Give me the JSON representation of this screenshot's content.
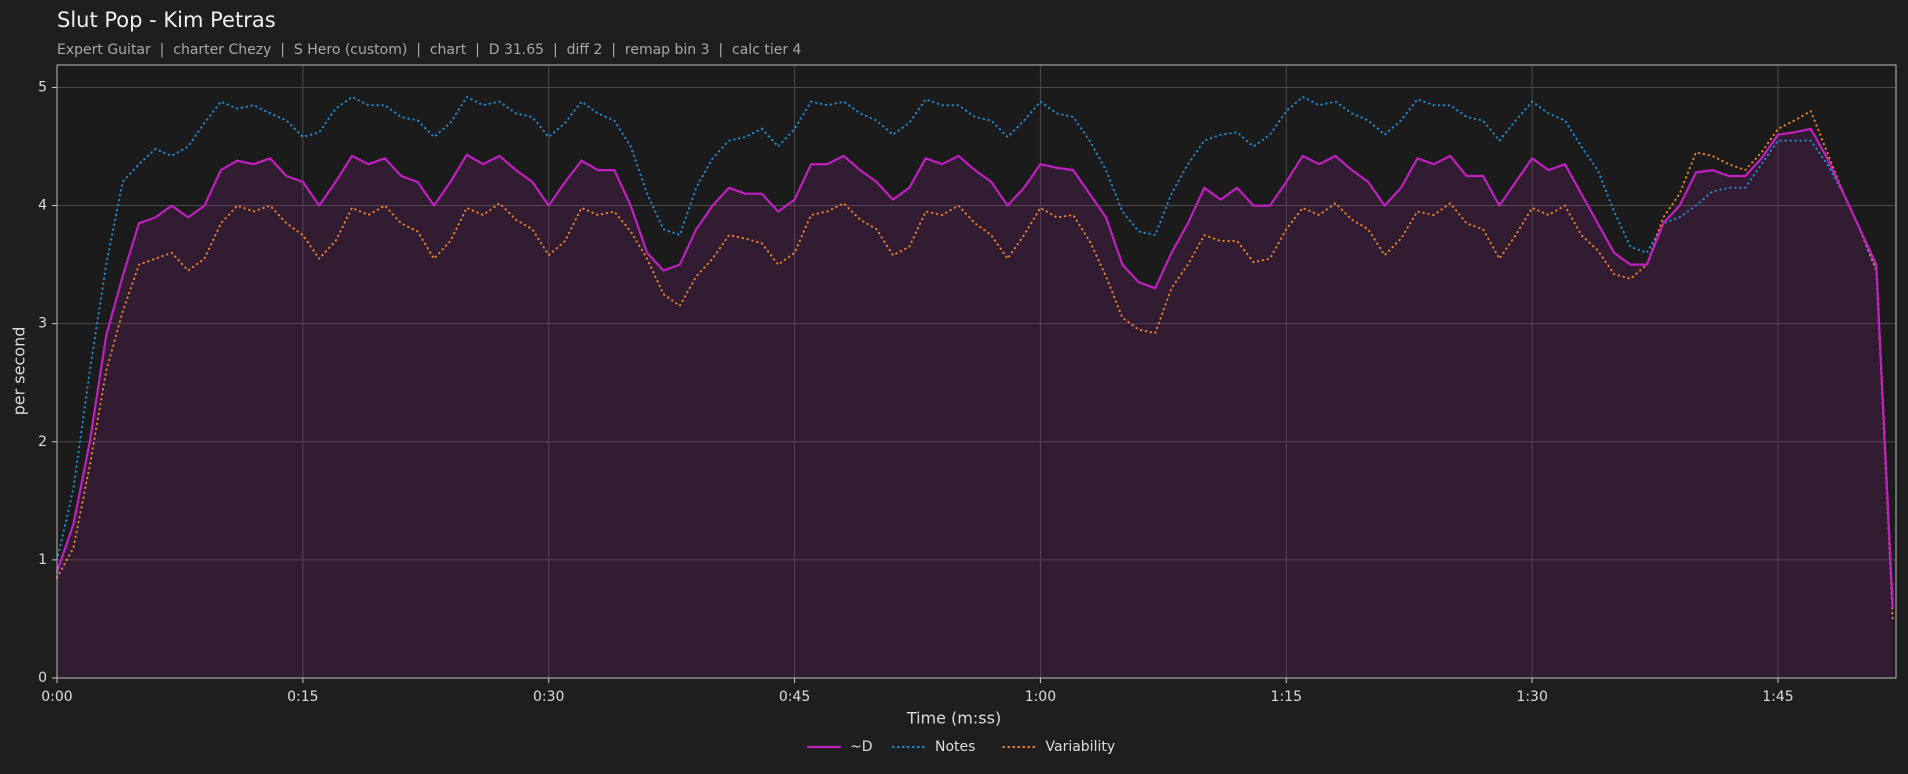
{
  "chart_data": {
    "type": "line",
    "title": "Slut Pop - Kim Petras",
    "subtitle": "Expert Guitar  |  charter Chezy  |  S Hero (custom)  |  chart  |  D 31.65  |  diff 2  |  remap bin 3  |  calc tier 4",
    "x_label": "Time (m:ss)",
    "y_label": "per second",
    "x": [
      0,
      1,
      2,
      3,
      4,
      5,
      6,
      7,
      8,
      9,
      10,
      11,
      12,
      13,
      14,
      15,
      16,
      17,
      18,
      19,
      20,
      21,
      22,
      23,
      24,
      25,
      26,
      27,
      28,
      29,
      30,
      31,
      32,
      33,
      34,
      35,
      36,
      37,
      38,
      39,
      40,
      41,
      42,
      43,
      44,
      45,
      46,
      47,
      48,
      49,
      50,
      51,
      52,
      53,
      54,
      55,
      56,
      57,
      58,
      59,
      60,
      61,
      62,
      63,
      64,
      65,
      66,
      67,
      68,
      69,
      70,
      71,
      72,
      73,
      74,
      75,
      76,
      77,
      78,
      79,
      80,
      81,
      82,
      83,
      84,
      85,
      86,
      87,
      88,
      89,
      90,
      91,
      92,
      93,
      94,
      95,
      96,
      97,
      98,
      99,
      100,
      101,
      102,
      103,
      104,
      105,
      106,
      107,
      108,
      109,
      110,
      111,
      112
    ],
    "series": [
      {
        "name": "~D",
        "color": "#c020c0",
        "style": "solid",
        "fill": true,
        "values": [
          0.9,
          1.3,
          2.0,
          2.9,
          3.4,
          3.85,
          3.9,
          4.0,
          3.9,
          4.0,
          4.3,
          4.38,
          4.35,
          4.4,
          4.25,
          4.2,
          4.0,
          4.2,
          4.42,
          4.35,
          4.4,
          4.25,
          4.2,
          4.0,
          4.2,
          4.43,
          4.35,
          4.42,
          4.3,
          4.2,
          4.0,
          4.2,
          4.38,
          4.3,
          4.3,
          4.0,
          3.6,
          3.45,
          3.5,
          3.8,
          4.0,
          4.15,
          4.1,
          4.1,
          3.95,
          4.05,
          4.35,
          4.35,
          4.42,
          4.3,
          4.2,
          4.05,
          4.15,
          4.4,
          4.35,
          4.42,
          4.3,
          4.2,
          4.0,
          4.15,
          4.35,
          4.32,
          4.3,
          4.1,
          3.9,
          3.5,
          3.35,
          3.3,
          3.6,
          3.85,
          4.15,
          4.05,
          4.15,
          4.0,
          4.0,
          4.2,
          4.42,
          4.35,
          4.42,
          4.3,
          4.2,
          4.0,
          4.15,
          4.4,
          4.35,
          4.42,
          4.25,
          4.25,
          4.0,
          4.2,
          4.4,
          4.3,
          4.35,
          4.1,
          3.85,
          3.6,
          3.5,
          3.5,
          3.85,
          4.0,
          4.28,
          4.3,
          4.25,
          4.25,
          4.4,
          4.6,
          4.62,
          4.65,
          4.4,
          4.1,
          3.8,
          3.5,
          0.6
        ]
      },
      {
        "name": "Notes",
        "color": "#1f8ad0",
        "style": "dotted",
        "values": [
          1.0,
          1.6,
          2.6,
          3.5,
          4.2,
          4.35,
          4.48,
          4.42,
          4.5,
          4.7,
          4.88,
          4.82,
          4.85,
          4.78,
          4.72,
          4.58,
          4.62,
          4.82,
          4.92,
          4.85,
          4.85,
          4.75,
          4.72,
          4.58,
          4.7,
          4.92,
          4.85,
          4.88,
          4.78,
          4.75,
          4.58,
          4.7,
          4.88,
          4.78,
          4.72,
          4.5,
          4.1,
          3.8,
          3.75,
          4.15,
          4.4,
          4.55,
          4.58,
          4.65,
          4.5,
          4.65,
          4.88,
          4.85,
          4.88,
          4.78,
          4.72,
          4.6,
          4.7,
          4.9,
          4.85,
          4.85,
          4.75,
          4.72,
          4.58,
          4.72,
          4.88,
          4.78,
          4.75,
          4.55,
          4.3,
          3.95,
          3.78,
          3.75,
          4.1,
          4.35,
          4.55,
          4.6,
          4.62,
          4.5,
          4.6,
          4.8,
          4.92,
          4.85,
          4.88,
          4.78,
          4.72,
          4.6,
          4.72,
          4.9,
          4.85,
          4.85,
          4.75,
          4.72,
          4.55,
          4.72,
          4.88,
          4.78,
          4.72,
          4.5,
          4.3,
          3.95,
          3.65,
          3.6,
          3.85,
          3.9,
          4.0,
          4.12,
          4.15,
          4.15,
          4.35,
          4.55,
          4.55,
          4.55,
          4.35,
          4.1,
          3.8,
          3.45,
          0.6
        ]
      },
      {
        "name": "Variability",
        "color": "#e8802a",
        "style": "dotted",
        "values": [
          0.85,
          1.1,
          1.8,
          2.6,
          3.1,
          3.5,
          3.55,
          3.6,
          3.45,
          3.55,
          3.85,
          4.0,
          3.95,
          4.0,
          3.85,
          3.75,
          3.55,
          3.7,
          3.98,
          3.92,
          4.0,
          3.85,
          3.78,
          3.55,
          3.7,
          3.98,
          3.92,
          4.02,
          3.88,
          3.8,
          3.58,
          3.7,
          3.98,
          3.92,
          3.95,
          3.78,
          3.55,
          3.25,
          3.15,
          3.4,
          3.55,
          3.75,
          3.72,
          3.68,
          3.5,
          3.6,
          3.92,
          3.95,
          4.02,
          3.88,
          3.8,
          3.58,
          3.65,
          3.95,
          3.92,
          4.0,
          3.85,
          3.75,
          3.55,
          3.75,
          3.98,
          3.9,
          3.92,
          3.7,
          3.4,
          3.05,
          2.95,
          2.92,
          3.3,
          3.5,
          3.75,
          3.7,
          3.7,
          3.52,
          3.55,
          3.8,
          3.98,
          3.92,
          4.02,
          3.88,
          3.8,
          3.58,
          3.72,
          3.95,
          3.92,
          4.02,
          3.85,
          3.8,
          3.55,
          3.75,
          3.98,
          3.92,
          4.0,
          3.75,
          3.62,
          3.42,
          3.38,
          3.5,
          3.9,
          4.1,
          4.45,
          4.42,
          4.35,
          4.3,
          4.45,
          4.65,
          4.72,
          4.8,
          4.45,
          4.1,
          3.8,
          3.45,
          0.5
        ]
      }
    ],
    "xlim": [
      0,
      112.2
    ],
    "xticks": [
      {
        "value": 0,
        "label": "0:00"
      },
      {
        "value": 15,
        "label": "0:15"
      },
      {
        "value": 30,
        "label": "0:30"
      },
      {
        "value": 45,
        "label": "0:45"
      },
      {
        "value": 60,
        "label": "1:00"
      },
      {
        "value": 75,
        "label": "1:15"
      },
      {
        "value": 90,
        "label": "1:30"
      },
      {
        "value": 105,
        "label": "1:45"
      }
    ],
    "ylim": [
      0,
      5.19
    ],
    "yticks": [
      0,
      1,
      2,
      3,
      4,
      5
    ],
    "grid": true,
    "legend": "bottom"
  }
}
